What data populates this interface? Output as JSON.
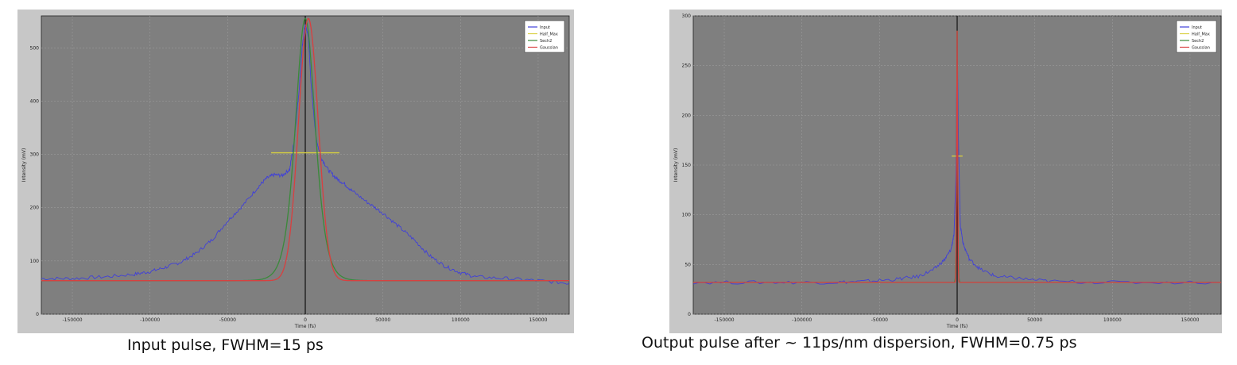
{
  "captions": {
    "left": "Input pulse, FWHM=15 ps",
    "right": "Output pulse after ~ 11ps/nm dispersion, FWHM=0.75 ps"
  },
  "colors": {
    "figure_bg": "#c7c7c7",
    "plot_bg": "#7f7f7f",
    "input": "#4040d8",
    "half_max": "#d8d040",
    "sech2": "#3a8a3a",
    "gaussian": "#d84040",
    "center_line": "#111111"
  },
  "chart_data": [
    {
      "type": "line",
      "title": "",
      "xlabel": "Time (fs)",
      "ylabel": "Intensity (mV)",
      "xlim": [
        -170000,
        170000
      ],
      "ylim": [
        0,
        560
      ],
      "xticks": [
        -150000,
        -100000,
        -50000,
        0,
        50000,
        100000,
        150000
      ],
      "xtick_labels": [
        "-150000",
        "-100000",
        "-50000",
        "0",
        "50000",
        "100000",
        "150000"
      ],
      "yticks": [
        0,
        100,
        200,
        300,
        400,
        500
      ],
      "ytick_labels": [
        "0",
        "100",
        "200",
        "300",
        "400",
        "500"
      ],
      "grid": true,
      "legend": {
        "position": "top-right",
        "entries": [
          "Input",
          "Half_Max",
          "Sech2",
          "Gaussian"
        ]
      },
      "series": [
        {
          "name": "Input",
          "role": "input",
          "x": [
            -170000,
            -150000,
            -130000,
            -110000,
            -100000,
            -90000,
            -80000,
            -70000,
            -60000,
            -50000,
            -40000,
            -30000,
            -25000,
            -20000,
            -15000,
            -10000,
            -7000,
            -4000,
            -2000,
            0,
            2000,
            4000,
            7000,
            10000,
            15000,
            20000,
            25000,
            30000,
            40000,
            50000,
            60000,
            70000,
            80000,
            90000,
            100000,
            110000,
            130000,
            150000,
            170000
          ],
          "y": [
            67,
            67,
            70,
            75,
            80,
            88,
            98,
            115,
            140,
            175,
            205,
            240,
            255,
            262,
            260,
            272,
            330,
            420,
            500,
            545,
            520,
            420,
            330,
            295,
            270,
            255,
            245,
            232,
            210,
            190,
            165,
            140,
            110,
            90,
            78,
            70,
            67,
            63,
            58
          ]
        },
        {
          "name": "Half_Max",
          "role": "half_max",
          "x": [
            -22000,
            22000
          ],
          "y": [
            303,
            303
          ]
        },
        {
          "name": "Sech2",
          "role": "sech2",
          "profile": "sech2",
          "center": 0,
          "fwhm": 15000,
          "baseline": 63,
          "peak": 555
        },
        {
          "name": "Gaussian",
          "role": "gaussian",
          "profile": "gauss",
          "center": 2000,
          "fwhm": 15000,
          "baseline": 63,
          "peak": 555
        }
      ]
    },
    {
      "type": "line",
      "title": "",
      "xlabel": "Time (fs)",
      "ylabel": "Intensity (mV)",
      "xlim": [
        -170000,
        170000
      ],
      "ylim": [
        0,
        300
      ],
      "xticks": [
        -150000,
        -100000,
        -50000,
        0,
        50000,
        100000,
        150000
      ],
      "xtick_labels": [
        "-150000",
        "-100000",
        "-50000",
        "0",
        "50000",
        "100000",
        "150000"
      ],
      "yticks": [
        0,
        50,
        100,
        150,
        200,
        250,
        300
      ],
      "ytick_labels": [
        "0",
        "50",
        "100",
        "150",
        "200",
        "250",
        "300"
      ],
      "grid": true,
      "legend": {
        "position": "top-right",
        "entries": [
          "Input",
          "Half_Max",
          "Sech2",
          "Gaussian"
        ]
      },
      "series": [
        {
          "name": "Input",
          "role": "input",
          "x": [
            -170000,
            -120000,
            -80000,
            -60000,
            -40000,
            -25000,
            -15000,
            -8000,
            -4000,
            -2000,
            -800,
            0,
            800,
            2000,
            4000,
            8000,
            15000,
            25000,
            40000,
            60000,
            100000,
            170000
          ],
          "y": [
            32,
            32,
            32,
            33,
            35,
            38,
            45,
            55,
            65,
            80,
            140,
            285,
            180,
            90,
            70,
            55,
            45,
            38,
            36,
            33,
            32,
            32
          ]
        },
        {
          "name": "Half_Max",
          "role": "half_max",
          "x": [
            -3500,
            3500
          ],
          "y": [
            159,
            159
          ]
        },
        {
          "name": "Sech2",
          "role": "sech2",
          "profile": "sech2",
          "center": 0,
          "fwhm": 750,
          "baseline": 32,
          "peak": 285
        },
        {
          "name": "Gaussian",
          "role": "gaussian",
          "profile": "gauss",
          "center": 0,
          "fwhm": 750,
          "baseline": 32,
          "peak": 285
        }
      ]
    }
  ]
}
